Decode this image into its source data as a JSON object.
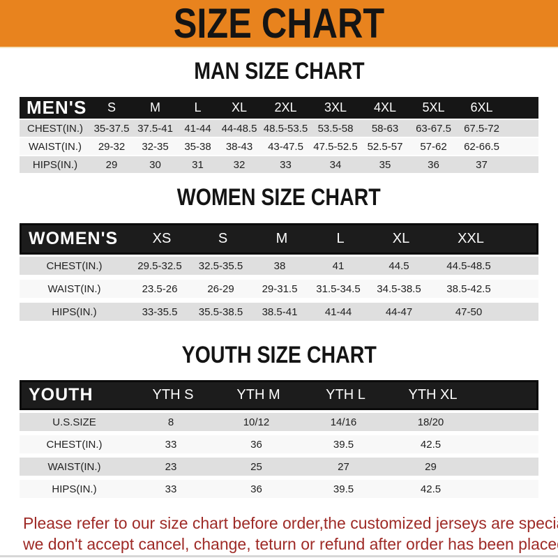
{
  "banner": {
    "title": "SIZE CHART"
  },
  "colors": {
    "banner_bg": "#E8831E",
    "header_bar": "#161616",
    "row_gray": "#DFDFDF",
    "row_white": "#F8F8F8",
    "footer_red": "#9E2A26"
  },
  "sections": {
    "men": {
      "heading": "MAN SIZE CHART",
      "corner": "MEN'S",
      "sizes": [
        "S",
        "M",
        "L",
        "XL",
        "2XL",
        "3XL",
        "4XL",
        "5XL",
        "6XL"
      ],
      "rows": [
        {
          "label": "CHEST(IN.)",
          "values": [
            "35-37.5",
            "37.5-41",
            "41-44",
            "44-48.5",
            "48.5-53.5",
            "53.5-58",
            "58-63",
            "63-67.5",
            "67.5-72"
          ]
        },
        {
          "label": "WAIST(IN.)",
          "values": [
            "29-32",
            "32-35",
            "35-38",
            "38-43",
            "43-47.5",
            "47.5-52.5",
            "52.5-57",
            "57-62",
            "62-66.5"
          ]
        },
        {
          "label": "HIPS(IN.)",
          "values": [
            "29",
            "30",
            "31",
            "32",
            "33",
            "34",
            "35",
            "36",
            "37"
          ]
        }
      ]
    },
    "women": {
      "heading": "WOMEN SIZE CHART",
      "corner": "WOMEN'S",
      "sizes": [
        "XS",
        "S",
        "M",
        "L",
        "XL",
        "XXL"
      ],
      "rows": [
        {
          "label": "CHEST(IN.)",
          "values": [
            "29.5-32.5",
            "32.5-35.5",
            "38",
            "41",
            "44.5",
            "44.5-48.5"
          ]
        },
        {
          "label": "WAIST(IN.)",
          "values": [
            "23.5-26",
            "26-29",
            "29-31.5",
            "31.5-34.5",
            "34.5-38.5",
            "38.5-42.5"
          ]
        },
        {
          "label": "HIPS(IN.)",
          "values": [
            "33-35.5",
            "35.5-38.5",
            "38.5-41",
            "41-44",
            "44-47",
            "47-50"
          ]
        }
      ]
    },
    "youth": {
      "heading": "YOUTH SIZE CHART",
      "corner": "YOUTH",
      "sizes": [
        "YTH S",
        "YTH M",
        "YTH L",
        "YTH XL"
      ],
      "rows": [
        {
          "label": "U.S.SIZE",
          "values": [
            "8",
            "10/12",
            "14/16",
            "18/20"
          ]
        },
        {
          "label": "CHEST(IN.)",
          "values": [
            "33",
            "36",
            "39.5",
            "42.5"
          ]
        },
        {
          "label": "WAIST(IN.)",
          "values": [
            "23",
            "25",
            "27",
            "29"
          ]
        },
        {
          "label": "HIPS(IN.)",
          "values": [
            "33",
            "36",
            "39.5",
            "42.5"
          ]
        }
      ]
    }
  },
  "footer": {
    "line1": "Please refer to our size chart before order,the customized jerseys are special products,",
    "line2": "we don't accept cancel, change, teturn or refund after order has been placed!"
  }
}
